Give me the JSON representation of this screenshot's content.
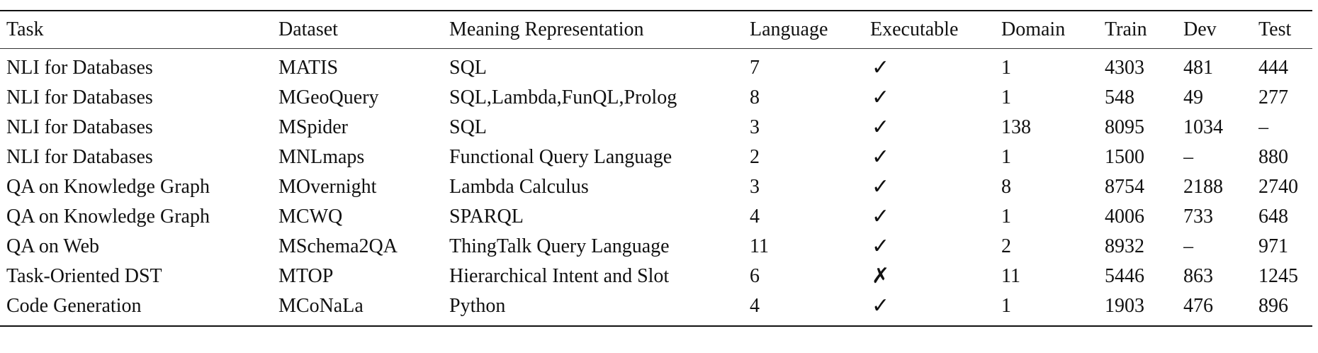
{
  "table": {
    "columns": [
      "Task",
      "Dataset",
      "Meaning Representation",
      "Language",
      "Executable",
      "Domain",
      "Train",
      "Dev",
      "Test"
    ],
    "rows": [
      {
        "task": "NLI for Databases",
        "dataset": "MATIS",
        "mr": "SQL",
        "language": "7",
        "executable": "✓",
        "domain": "1",
        "train": "4303",
        "dev": "481",
        "test": "444"
      },
      {
        "task": "NLI for Databases",
        "dataset": "MGeoQuery",
        "mr": "SQL,Lambda,FunQL,Prolog",
        "language": "8",
        "executable": "✓",
        "domain": "1",
        "train": "548",
        "dev": "49",
        "test": "277"
      },
      {
        "task": "NLI for Databases",
        "dataset": "MSpider",
        "mr": "SQL",
        "language": "3",
        "executable": "✓",
        "domain": "138",
        "train": "8095",
        "dev": "1034",
        "test": "–"
      },
      {
        "task": "NLI for Databases",
        "dataset": "MNLmaps",
        "mr": "Functional Query Language",
        "language": "2",
        "executable": "✓",
        "domain": "1",
        "train": "1500",
        "dev": "–",
        "test": "880"
      },
      {
        "task": "QA on Knowledge Graph",
        "dataset": "MOvernight",
        "mr": "Lambda Calculus",
        "language": "3",
        "executable": "✓",
        "domain": "8",
        "train": "8754",
        "dev": "2188",
        "test": "2740"
      },
      {
        "task": "QA on Knowledge Graph",
        "dataset": "MCWQ",
        "mr": "SPARQL",
        "language": "4",
        "executable": "✓",
        "domain": "1",
        "train": "4006",
        "dev": "733",
        "test": "648"
      },
      {
        "task": "QA on Web",
        "dataset": "MSchema2QA",
        "mr": "ThingTalk Query Language",
        "language": "11",
        "executable": "✓",
        "domain": "2",
        "train": "8932",
        "dev": "–",
        "test": "971"
      },
      {
        "task": "Task-Oriented DST",
        "dataset": "MTOP",
        "mr": "Hierarchical Intent and Slot",
        "language": "6",
        "executable": "✗",
        "domain": "11",
        "train": "5446",
        "dev": "863",
        "test": "1245"
      },
      {
        "task": "Code Generation",
        "dataset": "MCoNaLa",
        "mr": "Python",
        "language": "4",
        "executable": "✓",
        "domain": "1",
        "train": "1903",
        "dev": "476",
        "test": "896"
      }
    ]
  }
}
